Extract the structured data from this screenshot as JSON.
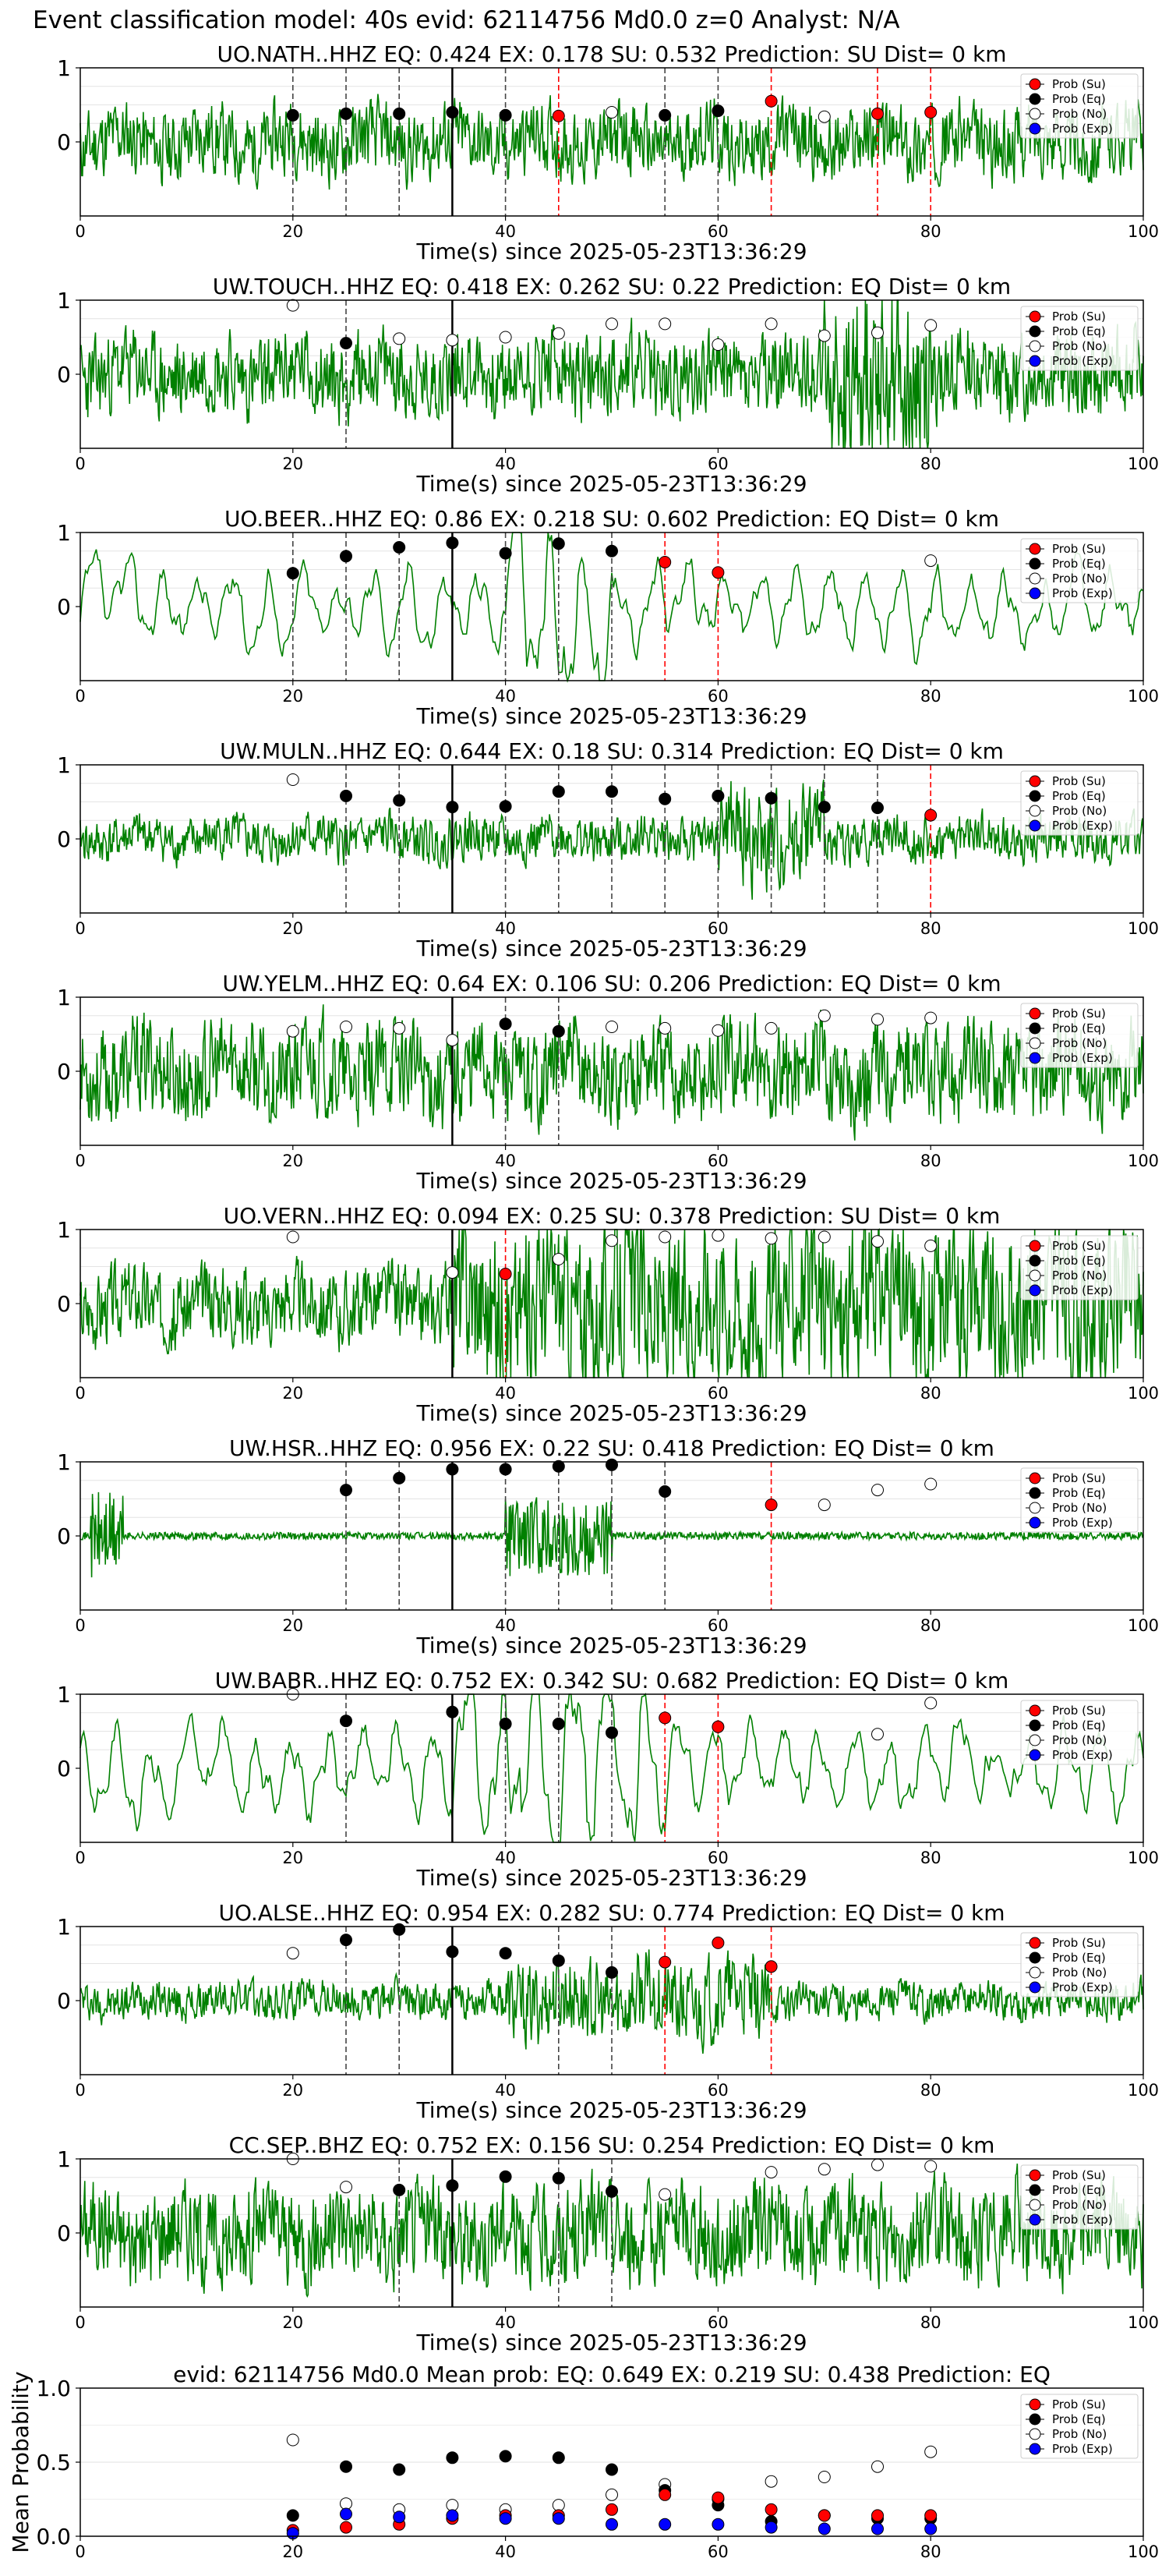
{
  "figure_title": "Event classification model: 40s evid: 62114756 Md0.0 z=0 Analyst: N/A",
  "colors": {
    "trace": "#008000",
    "su": "#ff0000",
    "eq": "#000000",
    "no": "#ffffff",
    "exp": "#0000ff"
  },
  "legend_labels": [
    "Prob (Su)",
    "Prob (Eq)",
    "Prob (No)",
    "Prob (Exp)"
  ],
  "xlabel": "Time(s) since 2025-05-23T13:36:29",
  "chart_data": [
    {
      "type": "line",
      "title": "UO.NATH..HHZ   EQ: 0.424  EX: 0.178  SU: 0.532   Prediction: SU    Dist= 0 km",
      "xlim": [
        0,
        100
      ],
      "xticks": [
        0,
        20,
        40,
        60,
        80,
        100
      ],
      "yticks": [
        0,
        1
      ],
      "ylim": [
        -1,
        1
      ],
      "pick": 35,
      "waveform": {
        "style": "noisy",
        "amp": 0.48,
        "seed": 11
      },
      "su_times": [
        45,
        65,
        75,
        80
      ],
      "eq_times": [
        20,
        25,
        30,
        35,
        40,
        55,
        60
      ],
      "no_times": [
        50,
        70
      ],
      "su": [
        [
          45,
          0.35
        ],
        [
          65,
          0.55
        ],
        [
          75,
          0.38
        ],
        [
          80,
          0.4
        ]
      ],
      "eq": [
        [
          20,
          0.36
        ],
        [
          25,
          0.38
        ],
        [
          30,
          0.38
        ],
        [
          35,
          0.4
        ],
        [
          40,
          0.36
        ],
        [
          55,
          0.36
        ],
        [
          60,
          0.42
        ]
      ],
      "no": [
        [
          50,
          0.4
        ],
        [
          70,
          0.34
        ]
      ]
    },
    {
      "type": "line",
      "title": "UW.TOUCH..HHZ   EQ: 0.418  EX: 0.262  SU: 0.22   Prediction: EQ    Dist= 0 km",
      "xlim": [
        0,
        100
      ],
      "xticks": [
        0,
        20,
        40,
        60,
        80,
        100
      ],
      "yticks": [
        0,
        1
      ],
      "ylim": [
        -1,
        1
      ],
      "pick": 35,
      "waveform": {
        "style": "noisy",
        "amp": 0.55,
        "seed": 23,
        "burst": [
          70,
          80
        ]
      },
      "su_times": [],
      "eq_times": [
        25
      ],
      "no_times": [],
      "su": [],
      "eq": [
        [
          25,
          0.42
        ]
      ],
      "no": [
        [
          20,
          0.93
        ],
        [
          30,
          0.48
        ],
        [
          35,
          0.46
        ],
        [
          40,
          0.5
        ],
        [
          45,
          0.55
        ],
        [
          50,
          0.68
        ],
        [
          55,
          0.68
        ],
        [
          60,
          0.4
        ],
        [
          65,
          0.68
        ],
        [
          70,
          0.52
        ],
        [
          75,
          0.56
        ],
        [
          80,
          0.66
        ]
      ]
    },
    {
      "type": "line",
      "title": "UO.BEER..HHZ   EQ: 0.86  EX: 0.218  SU: 0.602   Prediction: EQ    Dist= 0 km",
      "xlim": [
        0,
        100
      ],
      "xticks": [
        0,
        20,
        40,
        60,
        80,
        100
      ],
      "yticks": [
        0,
        1
      ],
      "ylim": [
        -1,
        1
      ],
      "pick": 35,
      "waveform": {
        "style": "smooth",
        "amp": 0.55,
        "seed": 37,
        "burst": [
          40,
          50
        ]
      },
      "su_times": [
        55,
        60
      ],
      "eq_times": [
        20,
        25,
        30,
        35,
        40,
        45,
        50
      ],
      "no_times": [],
      "su": [
        [
          55,
          0.6
        ],
        [
          60,
          0.46
        ]
      ],
      "eq": [
        [
          20,
          0.45
        ],
        [
          25,
          0.68
        ],
        [
          30,
          0.8
        ],
        [
          35,
          0.86
        ],
        [
          40,
          0.72
        ],
        [
          45,
          0.85
        ],
        [
          50,
          0.75
        ]
      ],
      "no": [
        [
          80,
          0.62
        ]
      ]
    },
    {
      "type": "line",
      "title": "UW.MULN..HHZ   EQ: 0.644  EX: 0.18  SU: 0.314   Prediction: EQ    Dist= 0 km",
      "xlim": [
        0,
        100
      ],
      "xticks": [
        0,
        20,
        40,
        60,
        80,
        100
      ],
      "yticks": [
        0,
        1
      ],
      "ylim": [
        -1,
        1
      ],
      "pick": 35,
      "waveform": {
        "style": "noisy",
        "amp": 0.3,
        "seed": 41,
        "burst": [
          60,
          70
        ]
      },
      "su_times": [
        80
      ],
      "eq_times": [
        25,
        30,
        40,
        45,
        50,
        55,
        60,
        65,
        70,
        75
      ],
      "no_times": [],
      "su": [
        [
          80,
          0.32
        ]
      ],
      "eq": [
        [
          25,
          0.58
        ],
        [
          30,
          0.52
        ],
        [
          35,
          0.43
        ],
        [
          40,
          0.44
        ],
        [
          45,
          0.64
        ],
        [
          50,
          0.64
        ],
        [
          55,
          0.54
        ],
        [
          60,
          0.58
        ],
        [
          65,
          0.55
        ],
        [
          70,
          0.43
        ],
        [
          75,
          0.42
        ]
      ],
      "no": [
        [
          20,
          0.8
        ]
      ]
    },
    {
      "type": "line",
      "title": "UW.YELM..HHZ   EQ: 0.64  EX: 0.106  SU: 0.206   Prediction: EQ    Dist= 0 km",
      "xlim": [
        0,
        100
      ],
      "xticks": [
        0,
        20,
        40,
        60,
        80,
        100
      ],
      "yticks": [
        0,
        1
      ],
      "ylim": [
        -1,
        1
      ],
      "pick": 35,
      "waveform": {
        "style": "noisy",
        "amp": 0.65,
        "seed": 53
      },
      "su_times": [],
      "eq_times": [
        40,
        45
      ],
      "no_times": [],
      "su": [],
      "eq": [
        [
          40,
          0.64
        ],
        [
          45,
          0.54
        ]
      ],
      "no": [
        [
          20,
          0.54
        ],
        [
          25,
          0.6
        ],
        [
          30,
          0.58
        ],
        [
          35,
          0.42
        ],
        [
          50,
          0.6
        ],
        [
          55,
          0.58
        ],
        [
          60,
          0.55
        ],
        [
          65,
          0.58
        ],
        [
          70,
          0.75
        ],
        [
          75,
          0.7
        ],
        [
          80,
          0.72
        ]
      ]
    },
    {
      "type": "line",
      "title": "UO.VERN..HHZ   EQ: 0.094  EX: 0.25  SU: 0.378   Prediction: SU    Dist= 0 km",
      "xlim": [
        0,
        100
      ],
      "xticks": [
        0,
        20,
        40,
        60,
        80,
        100
      ],
      "yticks": [
        0,
        1
      ],
      "ylim": [
        -1,
        1
      ],
      "pick": 35,
      "waveform": {
        "style": "noisy",
        "amp": 0.5,
        "seed": 67,
        "burst": [
          35,
          100
        ]
      },
      "su_times": [
        40
      ],
      "eq_times": [],
      "no_times": [],
      "su": [
        [
          40,
          0.4
        ]
      ],
      "eq": [],
      "no": [
        [
          20,
          0.9
        ],
        [
          35,
          0.42
        ],
        [
          45,
          0.6
        ],
        [
          50,
          0.85
        ],
        [
          55,
          0.9
        ],
        [
          60,
          0.92
        ],
        [
          65,
          0.88
        ],
        [
          70,
          0.9
        ],
        [
          75,
          0.84
        ],
        [
          80,
          0.78
        ]
      ]
    },
    {
      "type": "line",
      "title": "UW.HSR..HHZ   EQ: 0.956  EX: 0.22  SU: 0.418   Prediction: EQ    Dist= 0 km",
      "xlim": [
        0,
        100
      ],
      "xticks": [
        0,
        20,
        40,
        60,
        80,
        100
      ],
      "yticks": [
        0,
        1
      ],
      "ylim": [
        -1,
        1
      ],
      "pick": 35,
      "waveform": {
        "style": "quiet",
        "amp": 0.05,
        "seed": 71,
        "burst": [
          40,
          50
        ],
        "spike": [
          1,
          4
        ]
      },
      "su_times": [
        65
      ],
      "eq_times": [
        25,
        30,
        40,
        45,
        50,
        55
      ],
      "no_times": [],
      "su": [
        [
          65,
          0.42
        ]
      ],
      "eq": [
        [
          25,
          0.62
        ],
        [
          30,
          0.78
        ],
        [
          35,
          0.9
        ],
        [
          40,
          0.9
        ],
        [
          45,
          0.94
        ],
        [
          50,
          0.96
        ],
        [
          55,
          0.6
        ]
      ],
      "no": [
        [
          70,
          0.42
        ],
        [
          75,
          0.62
        ],
        [
          80,
          0.7
        ]
      ]
    },
    {
      "type": "line",
      "title": "UW.BABR..HHZ   EQ: 0.752  EX: 0.342  SU: 0.682   Prediction: EQ    Dist= 0 km",
      "xlim": [
        0,
        100
      ],
      "xticks": [
        0,
        20,
        40,
        60,
        80,
        100
      ],
      "yticks": [
        0,
        1
      ],
      "ylim": [
        -1,
        1
      ],
      "pick": 35,
      "waveform": {
        "style": "smooth",
        "amp": 0.6,
        "seed": 83,
        "burst": [
          35,
          55
        ]
      },
      "su_times": [
        55,
        60
      ],
      "eq_times": [
        25,
        40,
        45,
        50
      ],
      "no_times": [],
      "su": [
        [
          55,
          0.68
        ],
        [
          60,
          0.56
        ]
      ],
      "eq": [
        [
          25,
          0.64
        ],
        [
          35,
          0.76
        ],
        [
          40,
          0.6
        ],
        [
          45,
          0.6
        ],
        [
          50,
          0.48
        ]
      ],
      "no": [
        [
          20,
          1.0
        ],
        [
          75,
          0.46
        ],
        [
          80,
          0.88
        ]
      ]
    },
    {
      "type": "line",
      "title": "UO.ALSE..HHZ   EQ: 0.954  EX: 0.282  SU: 0.774   Prediction: EQ    Dist= 0 km",
      "xlim": [
        0,
        100
      ],
      "xticks": [
        0,
        20,
        40,
        60,
        80,
        100
      ],
      "yticks": [
        0,
        1
      ],
      "ylim": [
        -1,
        1
      ],
      "pick": 35,
      "waveform": {
        "style": "noisy",
        "amp": 0.25,
        "seed": 97,
        "burst": [
          40,
          65
        ]
      },
      "su_times": [
        55,
        65
      ],
      "eq_times": [
        25,
        30,
        45,
        50
      ],
      "no_times": [],
      "su": [
        [
          55,
          0.52
        ],
        [
          60,
          0.78
        ],
        [
          65,
          0.46
        ]
      ],
      "eq": [
        [
          25,
          0.82
        ],
        [
          30,
          0.96
        ],
        [
          35,
          0.66
        ],
        [
          40,
          0.64
        ],
        [
          45,
          0.54
        ],
        [
          50,
          0.38
        ]
      ],
      "no": [
        [
          20,
          0.64
        ]
      ]
    },
    {
      "type": "line",
      "title": "CC.SEP..BHZ   EQ: 0.752  EX: 0.156  SU: 0.254   Prediction: EQ    Dist= 0 km",
      "xlim": [
        0,
        100
      ],
      "xticks": [
        0,
        20,
        40,
        60,
        80,
        100
      ],
      "yticks": [
        0,
        1
      ],
      "ylim": [
        -1,
        1
      ],
      "pick": 35,
      "waveform": {
        "style": "noisy",
        "amp": 0.65,
        "seed": 101
      },
      "su_times": [],
      "eq_times": [
        30,
        45,
        50
      ],
      "no_times": [],
      "su": [],
      "eq": [
        [
          30,
          0.58
        ],
        [
          35,
          0.64
        ],
        [
          40,
          0.76
        ],
        [
          45,
          0.74
        ],
        [
          50,
          0.56
        ]
      ],
      "no": [
        [
          20,
          1.0
        ],
        [
          25,
          0.62
        ],
        [
          55,
          0.52
        ],
        [
          65,
          0.82
        ],
        [
          70,
          0.86
        ],
        [
          75,
          0.92
        ],
        [
          80,
          0.9
        ]
      ]
    },
    {
      "type": "scatter",
      "title": "evid: 62114756  Md0.0   Mean prob:   EQ: 0.649  EX: 0.219  SU: 0.438   Prediction: EQ",
      "ylabel": "Mean Probability",
      "xlim": [
        0,
        100
      ],
      "xticks": [
        0,
        20,
        40,
        60,
        80,
        100
      ],
      "ylim": [
        0,
        1
      ],
      "yticks": [
        0.0,
        0.5,
        1.0
      ],
      "ytick_labels": [
        "0.0",
        "0.5",
        "1.0"
      ],
      "su": [
        [
          20,
          0.04
        ],
        [
          25,
          0.06
        ],
        [
          30,
          0.08
        ],
        [
          35,
          0.12
        ],
        [
          40,
          0.14
        ],
        [
          45,
          0.14
        ],
        [
          50,
          0.18
        ],
        [
          55,
          0.28
        ],
        [
          60,
          0.26
        ],
        [
          65,
          0.18
        ],
        [
          70,
          0.14
        ],
        [
          75,
          0.14
        ],
        [
          80,
          0.14
        ]
      ],
      "eq": [
        [
          20,
          0.14
        ],
        [
          25,
          0.47
        ],
        [
          30,
          0.45
        ],
        [
          35,
          0.53
        ],
        [
          40,
          0.54
        ],
        [
          45,
          0.53
        ],
        [
          50,
          0.45
        ],
        [
          55,
          0.31
        ],
        [
          60,
          0.21
        ],
        [
          65,
          0.1
        ],
        [
          70,
          0.14
        ],
        [
          75,
          0.12
        ],
        [
          80,
          0.12
        ]
      ],
      "no": [
        [
          20,
          0.65
        ],
        [
          25,
          0.22
        ],
        [
          30,
          0.18
        ],
        [
          35,
          0.21
        ],
        [
          40,
          0.18
        ],
        [
          45,
          0.21
        ],
        [
          50,
          0.28
        ],
        [
          55,
          0.35
        ],
        [
          60,
          0.25
        ],
        [
          65,
          0.37
        ],
        [
          70,
          0.4
        ],
        [
          75,
          0.47
        ],
        [
          80,
          0.57
        ]
      ],
      "exp": [
        [
          20,
          0.02
        ],
        [
          25,
          0.15
        ],
        [
          30,
          0.13
        ],
        [
          35,
          0.14
        ],
        [
          40,
          0.12
        ],
        [
          45,
          0.12
        ],
        [
          50,
          0.08
        ],
        [
          55,
          0.08
        ],
        [
          60,
          0.08
        ],
        [
          65,
          0.06
        ],
        [
          70,
          0.05
        ],
        [
          75,
          0.05
        ],
        [
          80,
          0.05
        ]
      ]
    }
  ]
}
